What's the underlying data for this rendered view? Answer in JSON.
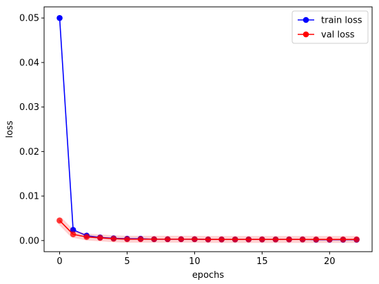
{
  "chart_data": {
    "type": "line",
    "title": "",
    "xlabel": "epochs",
    "ylabel": "loss",
    "xlim": [
      -1.15,
      23.15
    ],
    "ylim": [
      -0.0025,
      0.0525
    ],
    "xticks": [
      0,
      5,
      10,
      15,
      20
    ],
    "xtick_labels": [
      "0",
      "5",
      "10",
      "15",
      "20"
    ],
    "yticks": [
      0.0,
      0.01,
      0.02,
      0.03,
      0.04,
      0.05
    ],
    "ytick_labels": [
      "0.00",
      "0.01",
      "0.02",
      "0.03",
      "0.04",
      "0.05"
    ],
    "grid": false,
    "legend_position": "top-right",
    "x": [
      0,
      1,
      2,
      3,
      4,
      5,
      6,
      7,
      8,
      9,
      10,
      11,
      12,
      13,
      14,
      15,
      16,
      17,
      18,
      19,
      20,
      21,
      22
    ],
    "series": [
      {
        "name": "train loss",
        "color": "#0000ff",
        "values": [
          0.05,
          0.0024,
          0.0011,
          0.0007,
          0.0005,
          0.0004,
          0.0004,
          0.0003,
          0.0003,
          0.0003,
          0.0003,
          0.00025,
          0.00025,
          0.00025,
          0.00025,
          0.00025,
          0.00025,
          0.00025,
          0.00025,
          0.0002,
          0.0002,
          0.0002,
          0.0002
        ]
      },
      {
        "name": "val loss",
        "color": "#ff0000",
        "values": [
          0.0045,
          0.0014,
          0.0008,
          0.0006,
          0.0004,
          0.0003,
          0.0003,
          0.0003,
          0.0003,
          0.0003,
          0.0003,
          0.00025,
          0.00025,
          0.00025,
          0.00025,
          0.00025,
          0.00025,
          0.00025,
          0.00025,
          0.00025,
          0.00025,
          0.00025,
          0.00025
        ]
      }
    ]
  }
}
